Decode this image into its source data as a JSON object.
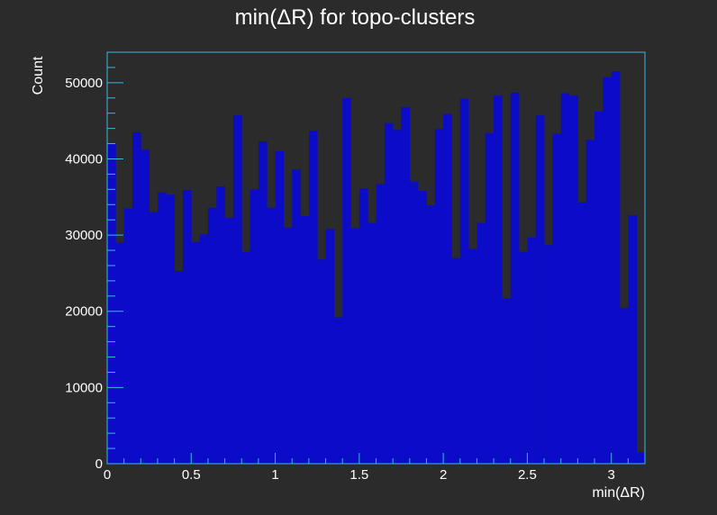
{
  "chart_data": {
    "type": "bar",
    "title": "min(ΔR) for topo-clusters",
    "xlabel": "min(ΔR)",
    "ylabel": "Count",
    "xlim": [
      0,
      3.2
    ],
    "ylim": [
      0,
      54000
    ],
    "bin_width": 0.05,
    "x_ticks": [
      "0",
      "0.5",
      "1",
      "1.5",
      "2",
      "2.5",
      "3"
    ],
    "x_tick_values": [
      0,
      0.5,
      1,
      1.5,
      2,
      2.5,
      3
    ],
    "y_ticks": [
      "0",
      "10000",
      "20000",
      "30000",
      "40000",
      "50000"
    ],
    "y_tick_values": [
      0,
      10000,
      20000,
      30000,
      40000,
      50000
    ],
    "grid": false,
    "colors": {
      "bar": "#0c0cc8",
      "frame": "#3ab7e0",
      "background": "#2b2b2b",
      "text": "#ffffff"
    },
    "values": [
      42000,
      29000,
      33500,
      43500,
      41200,
      33000,
      35600,
      35300,
      25300,
      35900,
      29100,
      30100,
      33600,
      36400,
      32300,
      45700,
      27800,
      36000,
      42300,
      33600,
      41000,
      31000,
      38600,
      32500,
      43700,
      26800,
      30800,
      19200,
      48000,
      30900,
      36100,
      31600,
      36700,
      44700,
      43800,
      46800,
      37000,
      35800,
      33900,
      43900,
      45900,
      27000,
      47900,
      28200,
      31600,
      43400,
      48300,
      21700,
      48700,
      27800,
      29700,
      45700,
      28700,
      43300,
      48600,
      48300,
      34300,
      42500,
      46200,
      50700,
      51500,
      20400,
      32600,
      1500
    ]
  }
}
